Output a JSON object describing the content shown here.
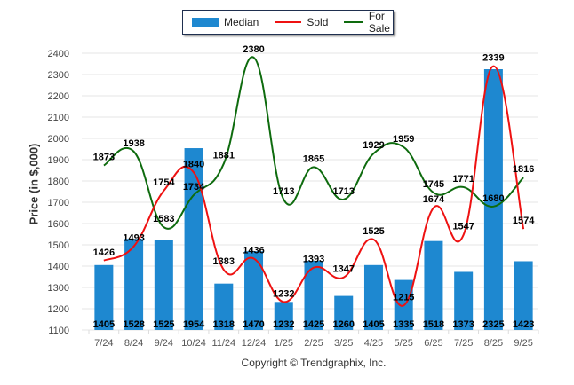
{
  "chart_data": {
    "type": "bar",
    "title": "",
    "xlabel": "",
    "ylabel": "Price (in $,000)",
    "ylim": [
      1100,
      2400
    ],
    "yticks": [
      1100,
      1200,
      1300,
      1400,
      1500,
      1600,
      1700,
      1800,
      1900,
      2000,
      2100,
      2200,
      2300,
      2400
    ],
    "grid": true,
    "legend_position": "top-center",
    "categories": [
      "7/24",
      "8/24",
      "9/24",
      "10/24",
      "11/24",
      "12/24",
      "1/25",
      "2/25",
      "3/25",
      "4/25",
      "5/25",
      "6/25",
      "7/25",
      "8/25",
      "9/25"
    ],
    "series": [
      {
        "name": "Median",
        "type": "bar",
        "color": "#1e88d0",
        "values": [
          1405,
          1528,
          1525,
          1954,
          1318,
          1470,
          1232,
          1425,
          1260,
          1405,
          1335,
          1518,
          1373,
          2325,
          1423
        ]
      },
      {
        "name": "Sold",
        "type": "line",
        "color": "#ee1111",
        "values": [
          1426,
          1493,
          1754,
          1840,
          1383,
          1436,
          1232,
          1393,
          1347,
          1525,
          1215,
          1674,
          1547,
          2339,
          1574
        ]
      },
      {
        "name": "For Sale",
        "type": "line",
        "color": "#0e6b0e",
        "values": [
          1873,
          1938,
          1583,
          1734,
          1881,
          2380,
          1713,
          1865,
          1713,
          1929,
          1959,
          1745,
          1771,
          1680,
          1816
        ]
      }
    ]
  },
  "legend": {
    "median_label": "Median",
    "sold_label": "Sold",
    "forsale_label": "For Sale"
  },
  "footer": {
    "copyright": "Copyright © Trendgraphix, Inc."
  }
}
